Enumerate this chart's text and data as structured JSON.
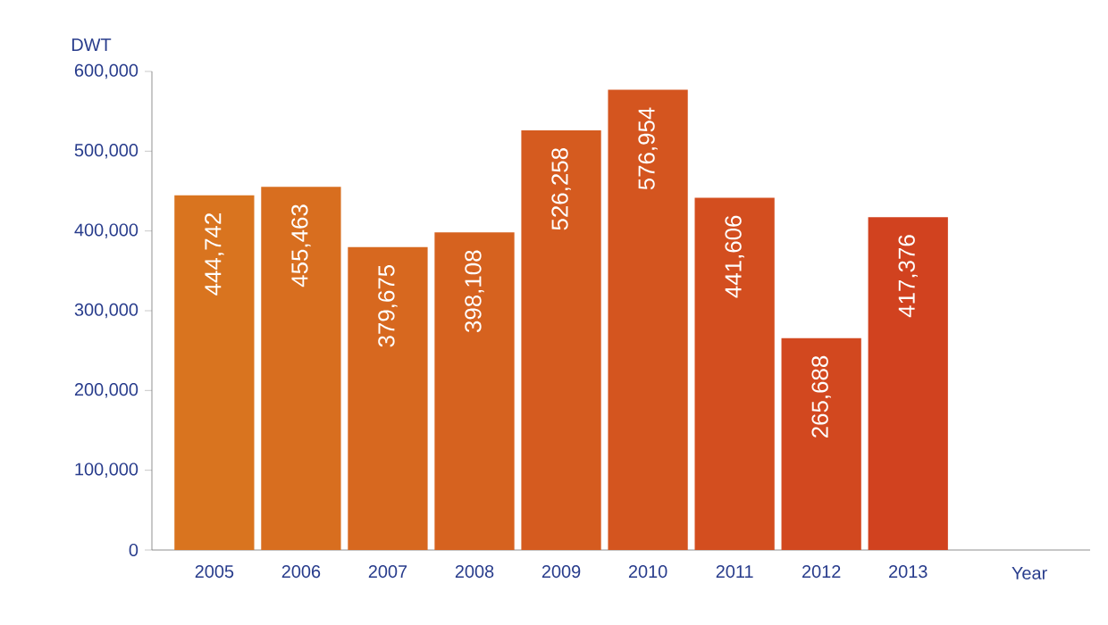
{
  "chart_data": {
    "type": "bar",
    "ylabel": "DWT",
    "xlabel": "Year",
    "categories": [
      "2005",
      "2006",
      "2007",
      "2008",
      "2009",
      "2010",
      "2011",
      "2012",
      "2013"
    ],
    "values": [
      444742,
      455463,
      379675,
      398108,
      526258,
      576954,
      441606,
      265688,
      417376
    ],
    "value_labels": [
      "444,742",
      "455,463",
      "379,675",
      "398,108",
      "526,258",
      "576,954",
      "441,606",
      "265,688",
      "417,376"
    ],
    "colors": [
      "#d9741f",
      "#d86e1f",
      "#d7681f",
      "#d6621f",
      "#d55b1f",
      "#d4551f",
      "#d34e1f",
      "#d2481f",
      "#d1421f"
    ],
    "ylim": [
      0,
      600000
    ],
    "yticks": [
      0,
      {
        "value": 100000,
        "label": "100,000"
      },
      {
        "value": 200000,
        "label": "200,000"
      },
      {
        "value": 300000,
        "label": "300,000"
      },
      {
        "value": 400000,
        "label": "400,000"
      },
      {
        "value": 500000,
        "label": "500,000"
      },
      {
        "value": 600000,
        "label": "600,000"
      }
    ],
    "grid": false
  }
}
